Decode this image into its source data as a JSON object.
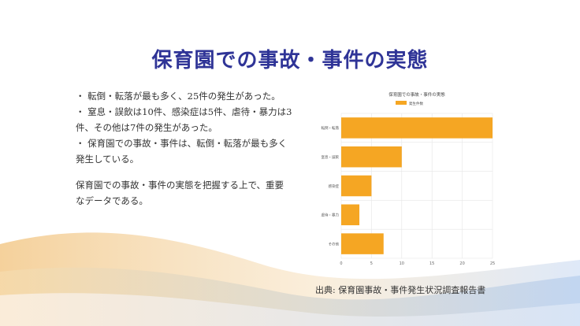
{
  "slide": {
    "title": "保育園での事故・事件の実態",
    "bullets": [
      "・ 転倒・転落が最も多く、25件の発生があった。",
      "・ 窒息・誤飲は10件、感染症は5件、虐待・暴力は3件、その他は7件の発生があった。",
      "・ 保育園での事故・事件は、転倒・転落が最も多く発生している。"
    ],
    "summary": "保育園での事故・事件の実態を把握する上で、重要なデータである。",
    "source": "出典: 保育園事故・事件発生状況調査報告書"
  },
  "colors": {
    "title": "#2f3497",
    "bar": "#f5a623",
    "grid": "#e6e6e6"
  },
  "chart_data": {
    "type": "bar",
    "orientation": "horizontal",
    "title": "保育園での事故・事件の実態",
    "categories": [
      "転倒・転落",
      "窒息・誤飲",
      "感染症",
      "虐待・暴力",
      "その他"
    ],
    "series": [
      {
        "name": "発生件数",
        "values": [
          25,
          10,
          5,
          3,
          7
        ]
      }
    ],
    "xlim": [
      0,
      25
    ],
    "xticks": [
      0,
      5,
      10,
      15,
      20,
      25
    ],
    "grid": true,
    "legend": "top"
  }
}
